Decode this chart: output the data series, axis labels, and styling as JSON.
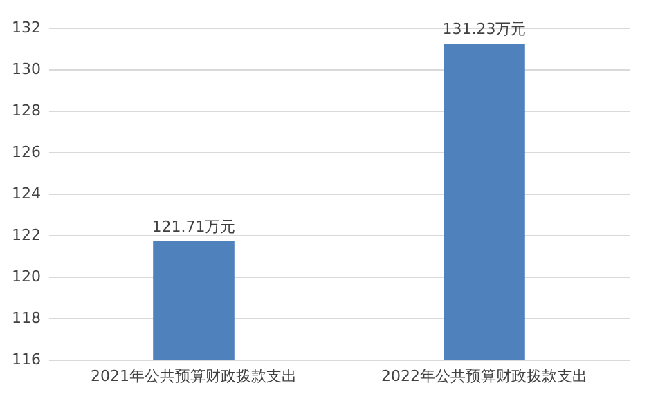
{
  "chart_data": {
    "type": "bar",
    "categories": [
      "2021年公共预算财政拨款支出",
      "2022年公共预算财政拨款支出"
    ],
    "values": [
      121.71,
      131.23
    ],
    "color": "#4f81bd",
    "value_labels": [
      "121.71万元",
      "131.23万元"
    ],
    "ylim": [
      116,
      132
    ],
    "yticks": [
      116,
      118,
      120,
      122,
      124,
      126,
      128,
      130,
      132
    ],
    "grid": "y"
  }
}
